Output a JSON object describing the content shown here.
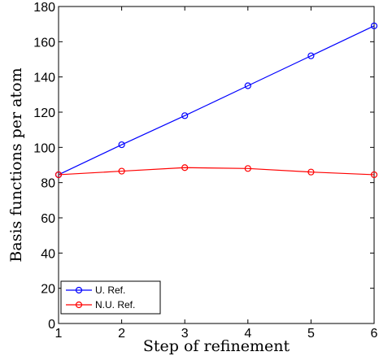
{
  "chart_data": {
    "type": "line",
    "xlabel": "Step of refinement",
    "ylabel": "Basis functions per atom",
    "x": [
      1,
      2,
      3,
      4,
      5,
      6
    ],
    "xlim": [
      1,
      6
    ],
    "ylim": [
      0,
      180
    ],
    "xticks": [
      1,
      2,
      3,
      4,
      5,
      6
    ],
    "yticks": [
      0,
      20,
      40,
      60,
      80,
      100,
      120,
      140,
      160,
      180
    ],
    "grid": false,
    "legend_position": "bottom-left",
    "series": [
      {
        "name": "U. Ref.",
        "color": "#0000ff",
        "marker": "circle",
        "values": [
          84.5,
          101.5,
          118,
          135,
          152,
          169
        ]
      },
      {
        "name": "N.U. Ref.",
        "color": "#ff0000",
        "marker": "circle",
        "values": [
          84.5,
          86.5,
          88.5,
          88,
          86,
          84.5
        ]
      }
    ]
  }
}
